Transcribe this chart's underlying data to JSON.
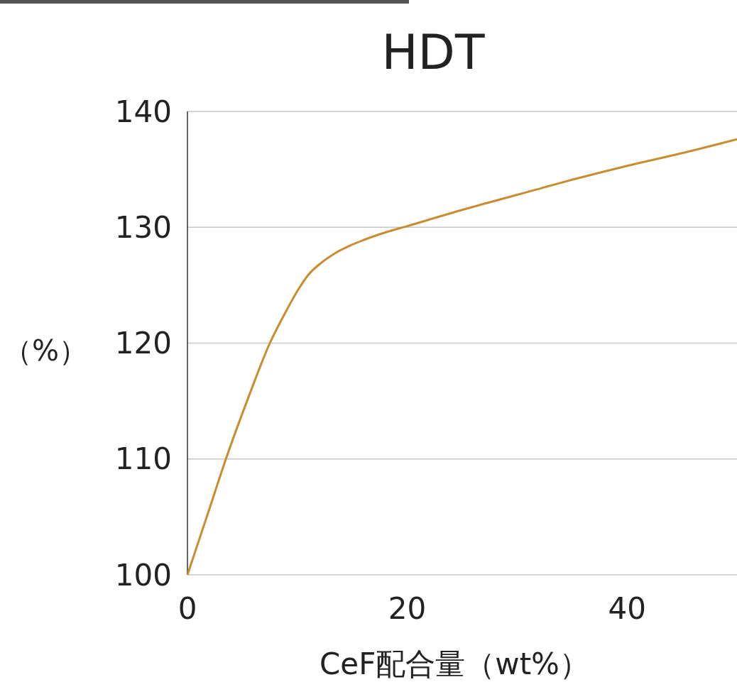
{
  "chart_data": {
    "type": "line",
    "title": "HDT",
    "xlabel": "CeF配合量（wt%）",
    "ylabel": "（%）",
    "x": [
      0,
      2,
      3.5,
      5.5,
      7.5,
      9,
      10,
      11,
      12,
      13.5,
      15,
      17.5,
      20,
      25,
      30,
      35,
      40,
      45,
      50
    ],
    "series": [
      {
        "color": "#c98c2e",
        "values": [
          100,
          105.7,
          110,
          115.2,
          120,
          122.8,
          124.5,
          125.9,
          126.8,
          127.8,
          128.5,
          129.4,
          130.1,
          131.5,
          132.8,
          134.1,
          135.3,
          136.4,
          137.6
        ]
      }
    ],
    "xlim": [
      0,
      50
    ],
    "xticks": [
      0,
      20,
      40
    ],
    "ylim": [
      100,
      140
    ],
    "yticks": [
      100,
      110,
      120,
      130,
      140
    ],
    "grid": "y",
    "marker": "none",
    "line_style": "solid"
  }
}
